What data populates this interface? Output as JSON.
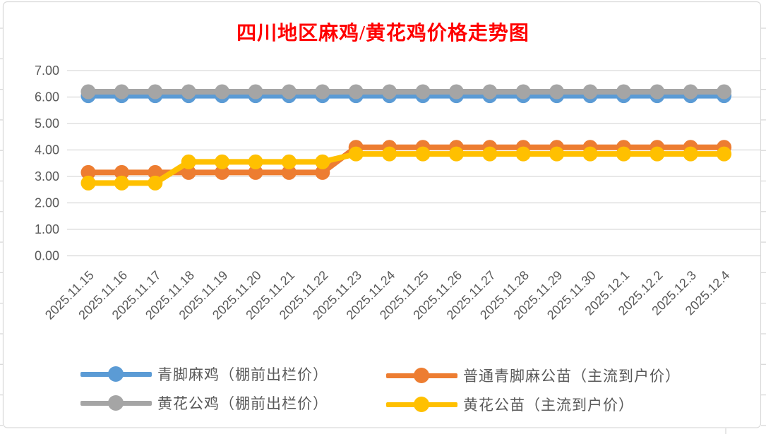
{
  "colors": {
    "title": "#FF0000",
    "axis_text": "#595959",
    "gridline": "#D9D9D9",
    "frame_border": "#D9D9D9",
    "sheet_grid": "#D9D9D9"
  },
  "chart_data": {
    "type": "line",
    "title": "四川地区麻鸡/黄花鸡价格走势图",
    "categories": [
      "2025.11.15",
      "2025.11.16",
      "2025.11.17",
      "2025.11.18",
      "2025.11.19",
      "2025.11.20",
      "2025.11.21",
      "2025.11.22",
      "2025.11.23",
      "2025.11.24",
      "2025.11.25",
      "2025.11.26",
      "2025.11.27",
      "2025.11.28",
      "2025.11.29",
      "2025.11.30",
      "2025.12.1",
      "2025.12.2",
      "2025.12.3",
      "2025.12.4"
    ],
    "series": [
      {
        "name": "青脚麻鸡（棚前出栏价）",
        "color": "#5B9BD5",
        "marker": "circle",
        "values": [
          6.05,
          6.05,
          6.05,
          6.05,
          6.05,
          6.05,
          6.05,
          6.05,
          6.05,
          6.05,
          6.05,
          6.05,
          6.05,
          6.05,
          6.05,
          6.05,
          6.05,
          6.05,
          6.05,
          6.05
        ]
      },
      {
        "name": "普通青脚麻公苗（主流到户价）",
        "color": "#ED7D31",
        "marker": "circle",
        "values": [
          3.15,
          3.15,
          3.15,
          3.15,
          3.15,
          3.15,
          3.15,
          3.15,
          4.1,
          4.1,
          4.1,
          4.1,
          4.1,
          4.1,
          4.1,
          4.1,
          4.1,
          4.1,
          4.1,
          4.1
        ]
      },
      {
        "name": "黄花公鸡（棚前出栏价）",
        "color": "#A5A5A5",
        "marker": "circle",
        "values": [
          6.2,
          6.2,
          6.2,
          6.2,
          6.2,
          6.2,
          6.2,
          6.2,
          6.2,
          6.2,
          6.2,
          6.2,
          6.2,
          6.2,
          6.2,
          6.2,
          6.2,
          6.2,
          6.2,
          6.2
        ]
      },
      {
        "name": "黄花公苗（主流到户价）",
        "color": "#FFC000",
        "marker": "circle",
        "values": [
          2.75,
          2.75,
          2.75,
          3.55,
          3.55,
          3.55,
          3.55,
          3.55,
          3.85,
          3.85,
          3.85,
          3.85,
          3.85,
          3.85,
          3.85,
          3.85,
          3.85,
          3.85,
          3.85,
          3.85
        ]
      }
    ],
    "y_axis": {
      "min": 0,
      "max": 7,
      "step": 1,
      "labels": [
        "7.00",
        "6.00",
        "5.00",
        "4.00",
        "3.00",
        "2.00",
        "1.00",
        "0.00"
      ]
    },
    "x_axis": {
      "label_rotation_deg": 45
    },
    "grid": true,
    "legend_position": "bottom-two-columns"
  }
}
